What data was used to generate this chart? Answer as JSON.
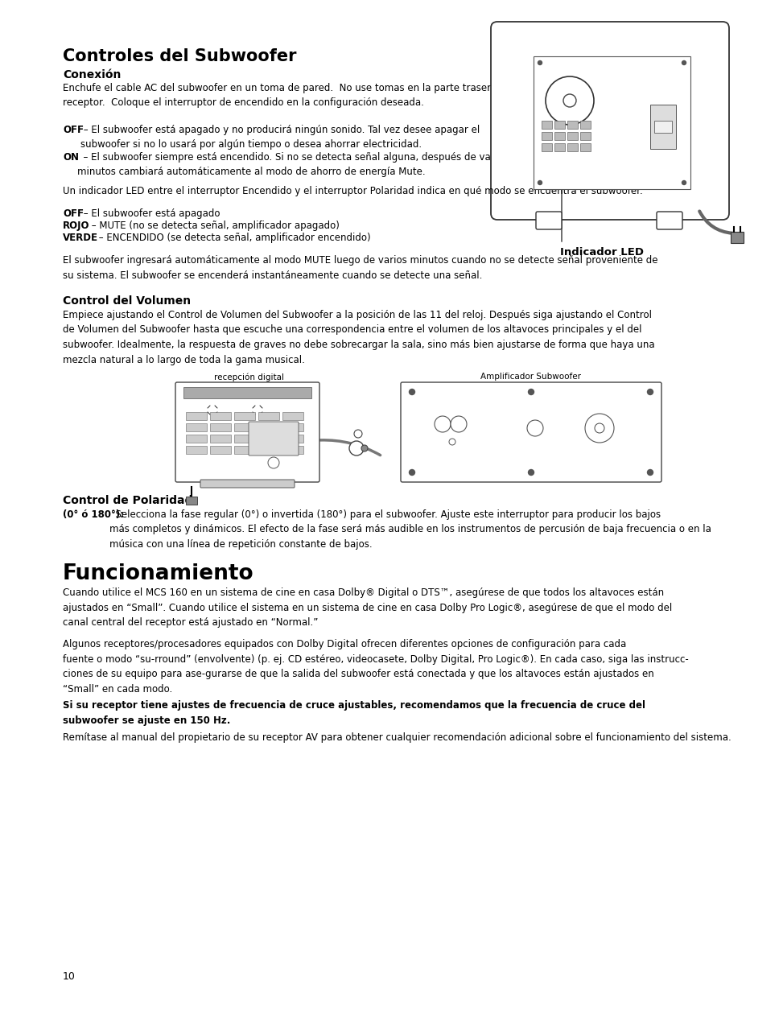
{
  "title": "Controles del Subwoofer",
  "section1_head": "Conexión",
  "section1_p1": "Enchufe el cable AC del subwoofer en un toma de pared.  No use tomas en la parte trasera del\nreceptor.  Coloque el interruptor de encendido en la configuración deseada.",
  "off_desc": " – El subwoofer está apagado y no producirá ningún sonido. Tal vez desee apagar el\nsubwoofer si no lo usará por algún tiempo o desea ahorrar electricidad.",
  "on_desc": "  – El subwoofer siempre está encendido. Si no se detecta señal alguna, después de varios\nminutos cambiará automáticamente al modo de ahorro de energía Mute.",
  "indicator_label": "Indicador LED",
  "led_text": "Un indicador LED entre el interruptor Encendido y el interruptor Polaridad indica en qué modo se encuentra el subwoofer.",
  "off2_rest": " – El subwoofer está apagado",
  "rojo_rest": " – MUTE (no se detecta señal, amplificador apagado)",
  "verde_rest": " – ENCENDIDO (se detecta señal, amplificador encendido)",
  "mute_para": "El subwoofer ingresará automáticamente al modo MUTE luego de varios minutos cuando no se detecte señal proveniente de\nsu sistema. El subwoofer se encenderá instantáneamente cuando se detecte una señal.",
  "vol_head": "Control del Volumen",
  "vol_text": "Empiece ajustando el Control de Volumen del Subwoofer a la posición de las 11 del reloj. Después siga ajustando el Control\nde Volumen del Subwoofer hasta que escuche una correspondencia entre el volumen de los altavoces principales y el del\nsubwoofer. Idealmente, la respuesta de graves no debe sobrecargar la sala, sino más bien ajustarse de forma que haya una\nmezcla natural a lo largo de toda la gama musical.",
  "recepcion_label": "recepción digital",
  "amplificador_label": "Amplificador Subwoofer",
  "pol_head": "Control de Polaridad",
  "pol_bold": "(0° ó 180°):",
  "pol_text": "  Selecciona la fase regular (0°) o invertida (180°) para el subwoofer. Ajuste este interruptor para producir los bajos\nmás completos y dinámicos. El efecto de la fase será más audible en los instrumentos de percusión de baja frecuencia o en la\nmúsica con una línea de repetición constante de bajos.",
  "func_title": "Funcionamiento",
  "func_text1": "Cuando utilice el MCS 160 en un sistema de cine en casa Dolby® Digital o DTS™, asegúrese de que todos los altavoces están\najustados en “Small”. Cuando utilice el sistema en un sistema de cine en casa Dolby Pro Logic®, asegúrese de que el modo del\ncanal central del receptor está ajustado en “Normal.”",
  "func_text2": "Algunos receptores/procesadores equipados con Dolby Digital ofrecen diferentes opciones de configuración para cada\nfuente o modo “su-rround” (envolvente) (p. ej. CD estéreo, videocasete, Dolby Digital, Pro Logic®). En cada caso, siga las instrucc-\nciones de su equipo para ase-gurarse de que la salida del subwoofer está conectada y que los altavoces están ajustados en\n“Small” en cada modo.",
  "func_bold": "Si su receptor tiene ajustes de frecuencia de cruce ajustables, recomendamos que la frecuencia de cruce del\nsubwoofer se ajuste en 150 Hz.",
  "func_text3": "Remítase al manual del propietario de su receptor AV para obtener cualquier recomendación adicional sobre el funcionamiento del sistema.",
  "page_num": "10",
  "bg_color": "#ffffff",
  "text_color": "#000000"
}
